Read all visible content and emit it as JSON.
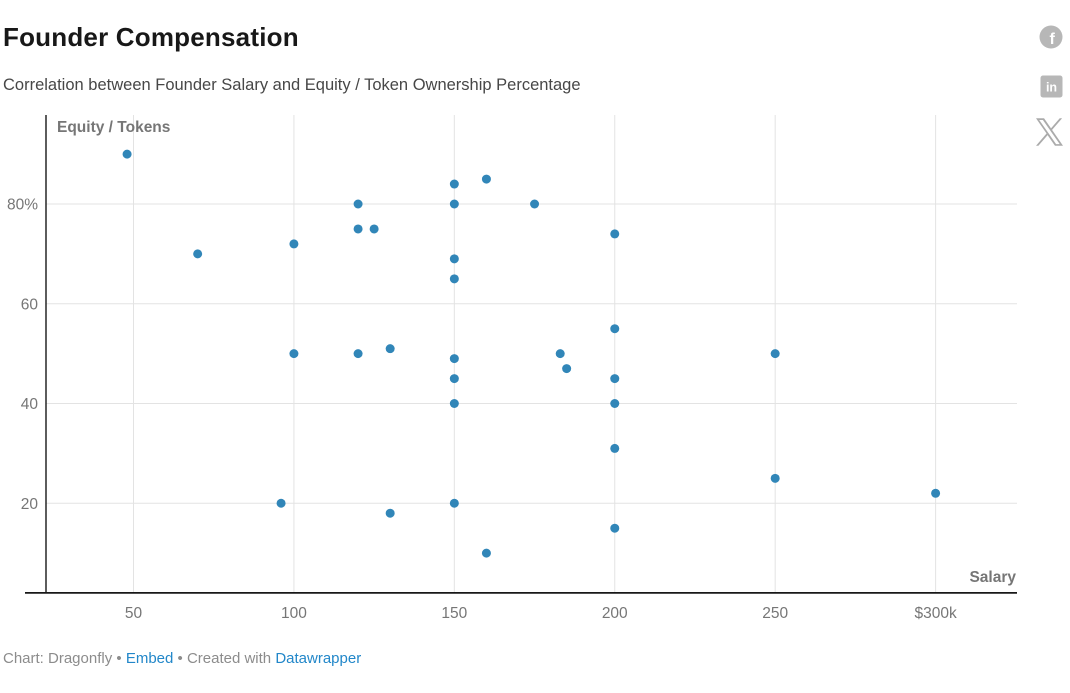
{
  "header": {
    "title": "Founder Compensation",
    "subtitle": "Correlation between Founder Salary and Equity / Token Ownership Percentage"
  },
  "social": {
    "facebook": {
      "glyph": "f"
    },
    "linkedin": {
      "glyph": "in"
    },
    "x": {
      "glyph": "X"
    }
  },
  "chart_data": {
    "type": "scatter",
    "title": "Founder Compensation",
    "subtitle": "Correlation between Founder Salary and Equity / Token Ownership Percentage",
    "xlabel": "Salary",
    "ylabel": "Equity / Tokens",
    "x_axis": {
      "label": "Salary",
      "ticks": [
        50,
        100,
        150,
        200,
        250,
        300
      ],
      "tick_labels": [
        "50",
        "100",
        "150",
        "200",
        "250",
        "$300k"
      ],
      "xlim": [
        23,
        325
      ],
      "unit": "thousand dollars"
    },
    "y_axis": {
      "label": "Equity / Tokens",
      "ticks": [
        20,
        40,
        60,
        80
      ],
      "tick_labels": [
        "20",
        "40",
        "60",
        "80%"
      ],
      "ylim": [
        2,
        98
      ],
      "unit": "percent"
    },
    "grid": true,
    "legend": false,
    "points": [
      [
        48,
        90
      ],
      [
        70,
        70
      ],
      [
        96,
        20
      ],
      [
        100,
        72
      ],
      [
        100,
        50
      ],
      [
        120,
        80
      ],
      [
        120,
        75
      ],
      [
        120,
        50
      ],
      [
        125,
        75
      ],
      [
        130,
        51
      ],
      [
        130,
        18
      ],
      [
        150,
        84
      ],
      [
        150,
        80
      ],
      [
        150,
        69
      ],
      [
        150,
        65
      ],
      [
        150,
        49
      ],
      [
        150,
        45
      ],
      [
        150,
        40
      ],
      [
        150,
        20
      ],
      [
        160,
        85
      ],
      [
        160,
        10
      ],
      [
        175,
        80
      ],
      [
        183,
        50
      ],
      [
        185,
        47
      ],
      [
        200,
        74
      ],
      [
        200,
        55
      ],
      [
        200,
        45
      ],
      [
        200,
        40
      ],
      [
        200,
        31
      ],
      [
        200,
        15
      ],
      [
        250,
        50
      ],
      [
        250,
        25
      ],
      [
        300,
        22
      ]
    ],
    "colors": {
      "point": "#3186b8",
      "gridline": "#e3e3e3",
      "axis_line": "#181818",
      "tick_label": "#767676",
      "axis_title": "#767676"
    }
  },
  "footer": {
    "credit": "Chart: Dragonfly",
    "bullet1": " • ",
    "embed_link": "Embed",
    "bullet2": " • ",
    "created": "Created with ",
    "datawrapper_link": "Datawrapper"
  },
  "ui_colors": {
    "link_blue": "#2287c9",
    "icon_gray": "#b5b5b5"
  }
}
